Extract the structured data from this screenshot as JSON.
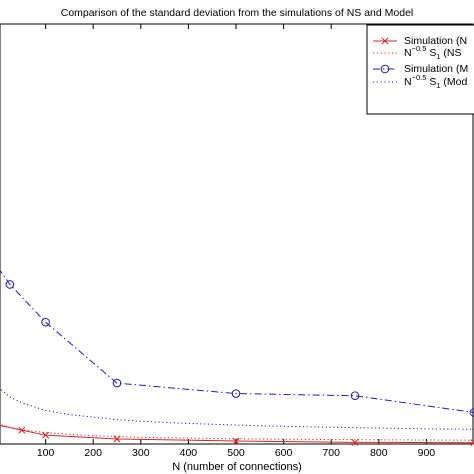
{
  "chart_data": {
    "type": "line",
    "title": "Comparison of the standard deviation from the simulations of NS and Model",
    "xlabel": "N (number of connections)",
    "ylabel": "",
    "xlim": [
      0,
      1000
    ],
    "ylim": [
      0,
      100
    ],
    "x_ticks": [
      100,
      200,
      300,
      400,
      500,
      600,
      700,
      800,
      900
    ],
    "x_tick_labels": [
      "100",
      "200",
      "300",
      "400",
      "500",
      "600",
      "700",
      "800",
      "900"
    ],
    "grid": false,
    "legend_position": "top-right",
    "series": [
      {
        "name": "Simulation (N",
        "style": "solid",
        "marker": "x",
        "color": "#d62728",
        "x": [
          0,
          50,
          100,
          250,
          500,
          750,
          1000
        ],
        "y": [
          4.5,
          3.3,
          2.1,
          1.2,
          0.7,
          0.4,
          0.3
        ]
      },
      {
        "name": "N-0.5 S1 (NS",
        "style": "dotted",
        "color": "#d62728",
        "x": [
          0,
          25,
          50,
          100,
          150,
          200,
          250,
          300,
          400,
          500,
          600,
          700,
          800,
          900,
          1000
        ],
        "y": [
          4.8,
          4.0,
          3.4,
          2.7,
          2.3,
          2.0,
          1.8,
          1.6,
          1.4,
          1.25,
          1.15,
          1.05,
          1.0,
          0.95,
          0.9
        ]
      },
      {
        "name": "Simulation (M",
        "style": "dashdot",
        "marker": "o",
        "color": "#1f1fbf",
        "x": [
          0,
          25,
          100,
          250,
          500,
          750,
          1000
        ],
        "y": [
          42,
          38,
          29,
          14.5,
          12.0,
          11.5,
          7.5
        ]
      },
      {
        "name": "N-0.5 S1 (Mod",
        "style": "dotted",
        "color": "#1f1fbf",
        "x": [
          0,
          25,
          50,
          100,
          150,
          200,
          250,
          300,
          400,
          500,
          600,
          700,
          800,
          900,
          1000
        ],
        "y": [
          13.5,
          11.2,
          9.8,
          8.0,
          7.0,
          6.4,
          5.8,
          5.4,
          4.9,
          4.5,
          4.2,
          4.0,
          3.8,
          3.6,
          3.5
        ]
      }
    ],
    "legend": [
      {
        "main": "Simulation (N",
        "sup": "",
        "sub": ""
      },
      {
        "main": "N",
        "sup": "−0.5",
        "mid": " S",
        "sub": "1",
        "tail": " (NS"
      },
      {
        "main": "Simulation (M",
        "sup": "",
        "sub": ""
      },
      {
        "main": "N",
        "sup": "−0.5",
        "mid": " S",
        "sub": "1",
        "tail": " (Mod"
      }
    ]
  }
}
